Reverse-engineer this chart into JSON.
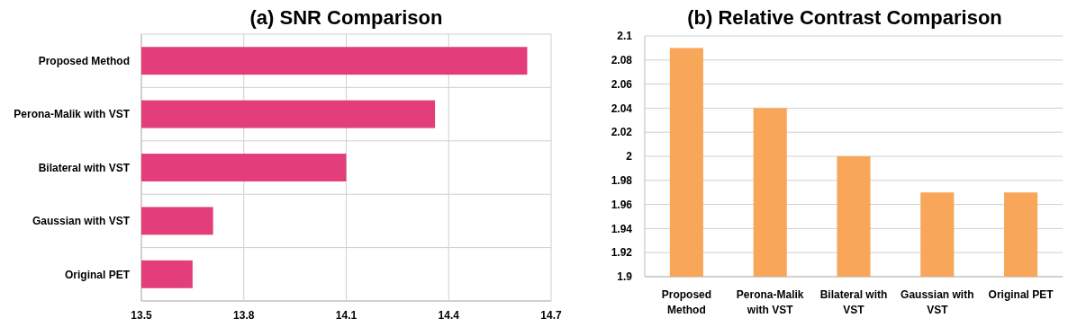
{
  "chart_data": [
    {
      "type": "bar",
      "title": "(a) SNR Comparison",
      "orientation": "horizontal",
      "categories": [
        "Proposed Method",
        "Perona-Malik with VST",
        "Bilateral with VST",
        "Gaussian with VST",
        "Original PET"
      ],
      "values": [
        14.63,
        14.36,
        14.1,
        13.71,
        13.65
      ],
      "color": "#e33d7b",
      "xlim": [
        13.5,
        14.7
      ],
      "xticks": [
        13.5,
        13.8,
        14.1,
        14.4,
        14.7
      ],
      "grid": true
    },
    {
      "type": "bar",
      "title": "(b) Relative Contrast Comparison",
      "categories": [
        "Proposed Method",
        "Perona-Malik with VST",
        "Bilateral with VST",
        "Gaussian with VST",
        "Original PET"
      ],
      "values": [
        2.09,
        2.04,
        2.0,
        1.97,
        1.97
      ],
      "color": "#f8a75a",
      "ylim": [
        1.9,
        2.1
      ],
      "yticks": [
        1.9,
        1.92,
        1.94,
        1.96,
        1.98,
        2,
        2.02,
        2.04,
        2.06,
        2.08,
        2.1
      ],
      "grid": "y"
    }
  ]
}
